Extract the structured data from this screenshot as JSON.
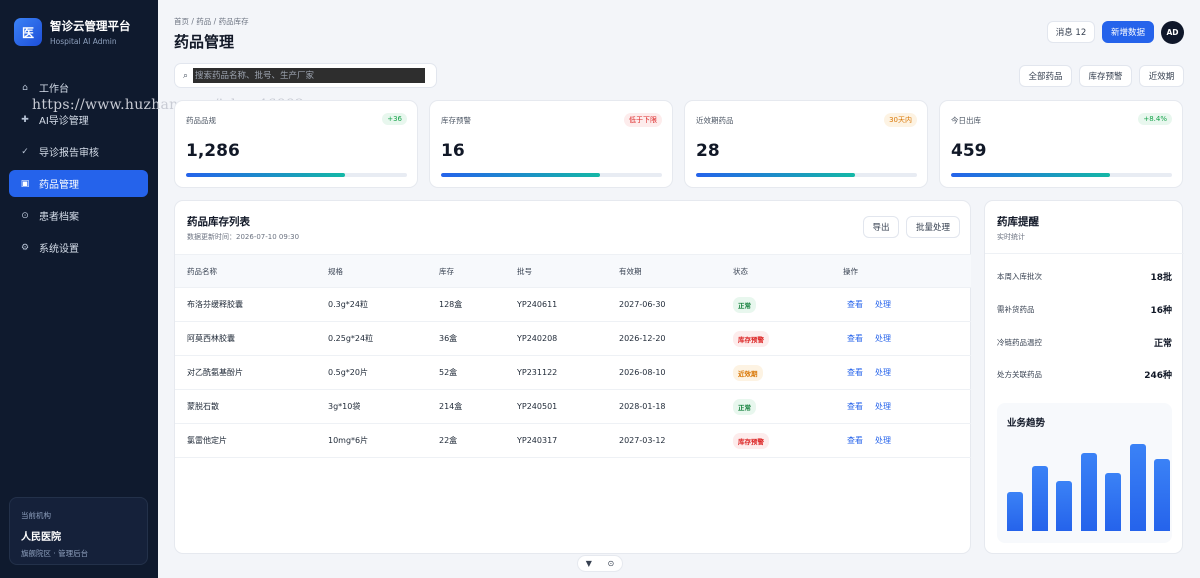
{
  "brand": {
    "logo": "医",
    "title": "智诊云管理平台",
    "subtitle": "Hospital AI Admin"
  },
  "nav": [
    {
      "icon": "⌂",
      "label": "工作台"
    },
    {
      "icon": "✚",
      "label": "AI导诊管理"
    },
    {
      "icon": "✓",
      "label": "导诊报告审核"
    },
    {
      "icon": "▣",
      "label": "药品管理"
    },
    {
      "icon": "⊙",
      "label": "患者档案"
    },
    {
      "icon": "⚙",
      "label": "系统设置"
    }
  ],
  "org": {
    "label": "当前机构",
    "name": "人民医院",
    "desc": "旗舰院区 · 管理后台"
  },
  "watermark": "https://www.huzhan.com/ishop46882",
  "header": {
    "breadcrumb": "首页 / 药品 / 药品库存",
    "title": "药品管理",
    "messages": "消息 12",
    "new_button": "新增数据",
    "avatar": "AD"
  },
  "search": {
    "placeholder": "搜索药品名称、批号、生产厂家"
  },
  "filters": [
    "全部药品",
    "库存预警",
    "近效期"
  ],
  "stats": [
    {
      "label": "药品品规",
      "badge": "+36",
      "value": "1,286",
      "progress": 0.72
    },
    {
      "label": "库存预警",
      "badge": "低于下限",
      "value": "16",
      "progress": 0.72
    },
    {
      "label": "近效期药品",
      "badge": "30天内",
      "value": "28",
      "progress": 0.72
    },
    {
      "label": "今日出库",
      "badge": "+8.4%",
      "value": "459",
      "progress": 0.72
    }
  ],
  "table": {
    "title": "药品库存列表",
    "subtitle": "数据更新时间：2026-07-10 09:30",
    "export": "导出",
    "batch": "批量处理",
    "columns": [
      "药品名称",
      "规格",
      "库存",
      "批号",
      "有效期",
      "状态",
      "操作"
    ],
    "rows": [
      {
        "name": "布洛芬缓释胶囊",
        "spec": "0.3g*24粒",
        "stock": "128盒",
        "batch": "YP240611",
        "expiry": "2027-06-30",
        "status": "正常",
        "view": "查看",
        "handle": "处理"
      },
      {
        "name": "阿莫西林胶囊",
        "spec": "0.25g*24粒",
        "stock": "36盒",
        "batch": "YP240208",
        "expiry": "2026-12-20",
        "status": "库存预警",
        "view": "查看",
        "handle": "处理"
      },
      {
        "name": "对乙酰氨基酚片",
        "spec": "0.5g*20片",
        "stock": "52盒",
        "batch": "YP231122",
        "expiry": "2026-08-10",
        "status": "近效期",
        "view": "查看",
        "handle": "处理"
      },
      {
        "name": "蒙脱石散",
        "spec": "3g*10袋",
        "stock": "214盒",
        "batch": "YP240501",
        "expiry": "2028-01-18",
        "status": "正常",
        "view": "查看",
        "handle": "处理"
      },
      {
        "name": "氯雷他定片",
        "spec": "10mg*6片",
        "stock": "22盒",
        "batch": "YP240317",
        "expiry": "2027-03-12",
        "status": "库存预警",
        "view": "查看",
        "handle": "处理"
      }
    ]
  },
  "panel": {
    "title": "药库提醒",
    "subtitle": "实时统计",
    "items": [
      {
        "label": "本周入库批次",
        "value": "18批"
      },
      {
        "label": "需补货药品",
        "value": "16种"
      },
      {
        "label": "冷链药品温控",
        "value": "正常"
      },
      {
        "label": "处方关联药品",
        "value": "246种"
      }
    ],
    "trend_title": "业务趋势",
    "trend_values": [
      40,
      66,
      51,
      80,
      59,
      89,
      73
    ]
  },
  "pager": {
    "filter_icon": "▼",
    "target_icon": "⊙"
  },
  "colors": {
    "sidebar": "#0f1a2e",
    "primary": "#2563eb",
    "background": "#f3f5f9"
  }
}
